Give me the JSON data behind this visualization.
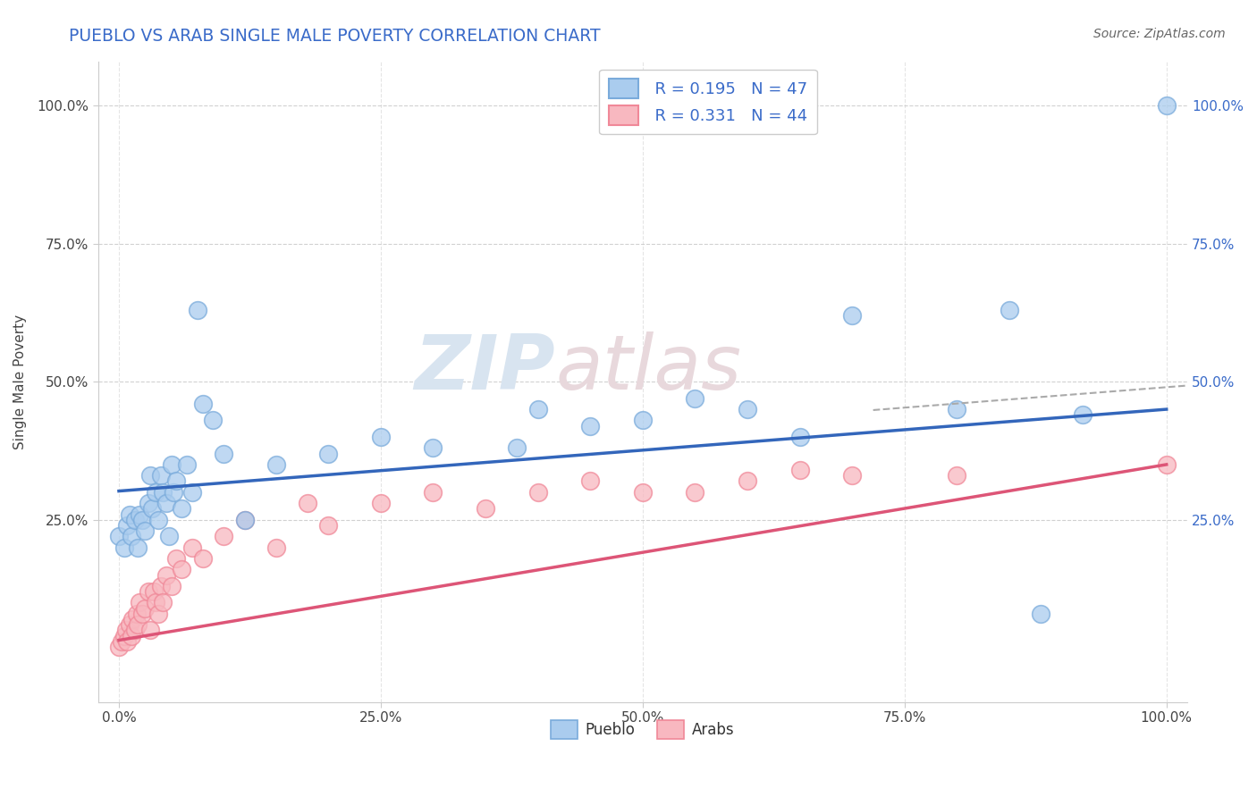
{
  "title": "PUEBLO VS ARAB SINGLE MALE POVERTY CORRELATION CHART",
  "source": "Source: ZipAtlas.com",
  "ylabel": "Single Male Poverty",
  "xlabel": "",
  "title_color": "#3a6bc9",
  "title_fontsize": 13.5,
  "background_color": "#ffffff",
  "grid_color": "#cccccc",
  "watermark_zip": "ZIP",
  "watermark_atlas": "atlas",
  "pueblo_color": "#7aabdb",
  "pueblo_color_fill": "#aaccee",
  "arab_color": "#f08898",
  "arab_color_fill": "#f8b8c0",
  "line_pueblo_color": "#3366bb",
  "line_arab_color": "#dd5577",
  "dashed_line_color": "#aaaaaa",
  "pueblo_R": 0.195,
  "pueblo_N": 47,
  "arab_R": 0.331,
  "arab_N": 44,
  "pueblo_x": [
    0.0,
    0.005,
    0.008,
    0.01,
    0.012,
    0.015,
    0.018,
    0.02,
    0.022,
    0.025,
    0.028,
    0.03,
    0.032,
    0.035,
    0.038,
    0.04,
    0.042,
    0.045,
    0.048,
    0.05,
    0.052,
    0.055,
    0.06,
    0.065,
    0.07,
    0.075,
    0.08,
    0.09,
    0.1,
    0.12,
    0.15,
    0.2,
    0.25,
    0.3,
    0.38,
    0.4,
    0.45,
    0.5,
    0.55,
    0.6,
    0.65,
    0.7,
    0.8,
    0.85,
    0.88,
    0.92,
    1.0
  ],
  "pueblo_y": [
    0.22,
    0.2,
    0.24,
    0.26,
    0.22,
    0.25,
    0.2,
    0.26,
    0.25,
    0.23,
    0.28,
    0.33,
    0.27,
    0.3,
    0.25,
    0.33,
    0.3,
    0.28,
    0.22,
    0.35,
    0.3,
    0.32,
    0.27,
    0.35,
    0.3,
    0.63,
    0.46,
    0.43,
    0.37,
    0.25,
    0.35,
    0.37,
    0.4,
    0.38,
    0.38,
    0.45,
    0.42,
    0.43,
    0.47,
    0.45,
    0.4,
    0.62,
    0.45,
    0.63,
    0.08,
    0.44,
    1.0
  ],
  "arab_x": [
    0.0,
    0.003,
    0.005,
    0.007,
    0.008,
    0.01,
    0.012,
    0.013,
    0.015,
    0.017,
    0.018,
    0.02,
    0.022,
    0.025,
    0.028,
    0.03,
    0.033,
    0.035,
    0.038,
    0.04,
    0.042,
    0.045,
    0.05,
    0.055,
    0.06,
    0.07,
    0.08,
    0.1,
    0.12,
    0.15,
    0.18,
    0.2,
    0.25,
    0.3,
    0.35,
    0.4,
    0.45,
    0.5,
    0.55,
    0.6,
    0.65,
    0.7,
    0.8,
    1.0
  ],
  "arab_y": [
    0.02,
    0.03,
    0.04,
    0.05,
    0.03,
    0.06,
    0.04,
    0.07,
    0.05,
    0.08,
    0.06,
    0.1,
    0.08,
    0.09,
    0.12,
    0.05,
    0.12,
    0.1,
    0.08,
    0.13,
    0.1,
    0.15,
    0.13,
    0.18,
    0.16,
    0.2,
    0.18,
    0.22,
    0.25,
    0.2,
    0.28,
    0.24,
    0.28,
    0.3,
    0.27,
    0.3,
    0.32,
    0.3,
    0.3,
    0.32,
    0.34,
    0.33,
    0.33,
    0.35
  ],
  "xlim": [
    -0.02,
    1.02
  ],
  "ylim": [
    -0.08,
    1.08
  ],
  "xtick_vals": [
    0.0,
    0.25,
    0.5,
    0.75,
    1.0
  ],
  "xtick_labels": [
    "0.0%",
    "25.0%",
    "50.0%",
    "75.0%",
    "100.0%"
  ],
  "ytick_vals": [
    0.25,
    0.5,
    0.75,
    1.0
  ],
  "ytick_labels": [
    "25.0%",
    "50.0%",
    "75.0%",
    "100.0%"
  ],
  "legend_labels": [
    "Pueblo",
    "Arabs"
  ],
  "blue_color": "#3a6bc9"
}
